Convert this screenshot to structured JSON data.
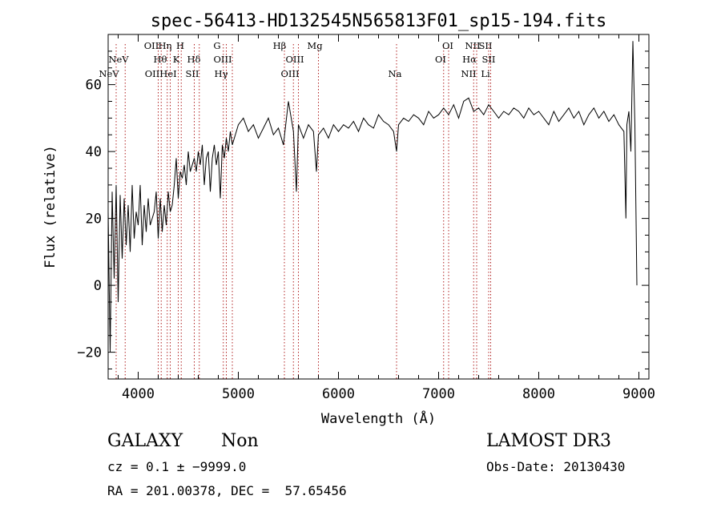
{
  "chart_data": {
    "type": "line",
    "title": "spec-56413-HD132545N565813F01_sp15-194.fits",
    "xlabel": "Wavelength (Å)",
    "ylabel": "Flux (relative)",
    "xlim": [
      3700,
      9100
    ],
    "ylim": [
      -28,
      75
    ],
    "xticks": [
      4000,
      5000,
      6000,
      7000,
      8000,
      9000
    ],
    "yticks": [
      -20,
      0,
      20,
      40,
      60
    ],
    "line_color": "#000000",
    "marker_color": "#b02020",
    "series": [
      {
        "name": "flux",
        "x": [
          3700,
          3720,
          3740,
          3760,
          3780,
          3800,
          3820,
          3840,
          3860,
          3880,
          3900,
          3920,
          3940,
          3960,
          3980,
          4000,
          4020,
          4040,
          4060,
          4080,
          4100,
          4120,
          4140,
          4160,
          4180,
          4200,
          4220,
          4240,
          4260,
          4280,
          4300,
          4320,
          4340,
          4360,
          4380,
          4400,
          4420,
          4440,
          4460,
          4480,
          4500,
          4520,
          4540,
          4560,
          4580,
          4600,
          4620,
          4640,
          4660,
          4680,
          4700,
          4720,
          4740,
          4760,
          4780,
          4800,
          4820,
          4840,
          4860,
          4880,
          4900,
          4920,
          4940,
          4960,
          4980,
          5000,
          5050,
          5100,
          5150,
          5200,
          5250,
          5300,
          5350,
          5400,
          5450,
          5500,
          5550,
          5580,
          5600,
          5650,
          5700,
          5750,
          5780,
          5800,
          5850,
          5900,
          5950,
          6000,
          6050,
          6100,
          6150,
          6200,
          6250,
          6300,
          6350,
          6400,
          6450,
          6500,
          6550,
          6580,
          6600,
          6650,
          6700,
          6750,
          6800,
          6850,
          6900,
          6950,
          7000,
          7050,
          7100,
          7150,
          7200,
          7250,
          7300,
          7350,
          7400,
          7450,
          7500,
          7550,
          7600,
          7650,
          7700,
          7750,
          7800,
          7850,
          7900,
          7950,
          8000,
          8050,
          8100,
          8150,
          8200,
          8250,
          8300,
          8350,
          8400,
          8450,
          8500,
          8550,
          8600,
          8650,
          8700,
          8750,
          8800,
          8850,
          8870,
          8880,
          8900,
          8920,
          8940,
          8960,
          8980
        ],
        "y": [
          22,
          -20,
          28,
          2,
          30,
          -5,
          27,
          8,
          26,
          12,
          24,
          10,
          30,
          14,
          22,
          18,
          30,
          12,
          24,
          16,
          26,
          18,
          20,
          22,
          28,
          14,
          26,
          16,
          24,
          18,
          28,
          22,
          24,
          30,
          38,
          26,
          34,
          32,
          36,
          30,
          40,
          34,
          36,
          38,
          34,
          40,
          36,
          42,
          30,
          38,
          40,
          28,
          38,
          42,
          36,
          40,
          26,
          42,
          38,
          44,
          40,
          46,
          42,
          44,
          46,
          48,
          50,
          46,
          48,
          44,
          47,
          50,
          45,
          47,
          42,
          55,
          46,
          28,
          48,
          44,
          48,
          46,
          34,
          45,
          47,
          44,
          48,
          46,
          48,
          47,
          49,
          46,
          50,
          48,
          47,
          51,
          49,
          48,
          46,
          40,
          48,
          50,
          49,
          51,
          50,
          48,
          52,
          50,
          51,
          53,
          51,
          54,
          50,
          55,
          56,
          52,
          53,
          51,
          54,
          52,
          50,
          52,
          51,
          53,
          52,
          50,
          53,
          51,
          52,
          50,
          48,
          52,
          49,
          51,
          53,
          50,
          52,
          48,
          51,
          53,
          50,
          52,
          49,
          51,
          48,
          46,
          20,
          48,
          52,
          40,
          73,
          48,
          0
        ]
      }
    ],
    "line_labels": [
      {
        "text": "NeV",
        "wl": 3426,
        "row": 2
      },
      {
        "text": "NeV",
        "wl": 3346,
        "row": 3
      },
      {
        "text": "OII",
        "wl": 3727,
        "row": 0
      },
      {
        "text": "Hη",
        "wl": 3835,
        "row": 0
      },
      {
        "text": "H",
        "wl": 3970,
        "row": 0
      },
      {
        "text": "Hθ",
        "wl": 3798,
        "row": 1
      },
      {
        "text": "K",
        "wl": 3934,
        "row": 1
      },
      {
        "text": "Hδ",
        "wl": 4102,
        "row": 1
      },
      {
        "text": "OII",
        "wl": 3727,
        "row": 2
      },
      {
        "text": "HeI",
        "wl": 3889,
        "row": 2
      },
      {
        "text": "SII",
        "wl": 4072,
        "row": 2
      },
      {
        "text": "G",
        "wl": 4304,
        "row": 0
      },
      {
        "text": "OIII",
        "wl": 4363,
        "row": 1
      },
      {
        "text": "Hγ",
        "wl": 4340,
        "row": 2
      },
      {
        "text": "Hβ",
        "wl": 4861,
        "row": 0
      },
      {
        "text": "Mg",
        "wl": 5175,
        "row": 0
      },
      {
        "text": "OIII",
        "wl": 5007,
        "row": 1
      },
      {
        "text": "OIII",
        "wl": 4959,
        "row": 2
      },
      {
        "text": "Na",
        "wl": 5893,
        "row": 2
      },
      {
        "text": "OI",
        "wl": 6363,
        "row": 0
      },
      {
        "text": "NII",
        "wl": 6584,
        "row": 0
      },
      {
        "text": "SII",
        "wl": 6731,
        "row": 0
      },
      {
        "text": "OI",
        "wl": 6300,
        "row": 1
      },
      {
        "text": "Hα",
        "wl": 6563,
        "row": 1
      },
      {
        "text": "SII",
        "wl": 6717,
        "row": 1
      },
      {
        "text": "NII",
        "wl": 6548,
        "row": 2
      },
      {
        "text": "Li",
        "wl": 6708,
        "row": 2
      }
    ],
    "line_markers_wl": [
      3780,
      3870,
      4200,
      4230,
      4290,
      4320,
      4400,
      4430,
      4560,
      4610,
      4850,
      4880,
      4940,
      5460,
      5550,
      5600,
      5800,
      6580,
      7050,
      7100,
      7350,
      7380,
      7500,
      7520
    ]
  },
  "info": {
    "class_label": "GALAXY",
    "subclass": "Non",
    "survey": "LAMOST DR3",
    "cz_line": "cz = 0.1 ± −9999.0",
    "obs_date": "Obs-Date: 20130430",
    "coord_line": "RA = 201.00378, DEC =  57.65456"
  }
}
